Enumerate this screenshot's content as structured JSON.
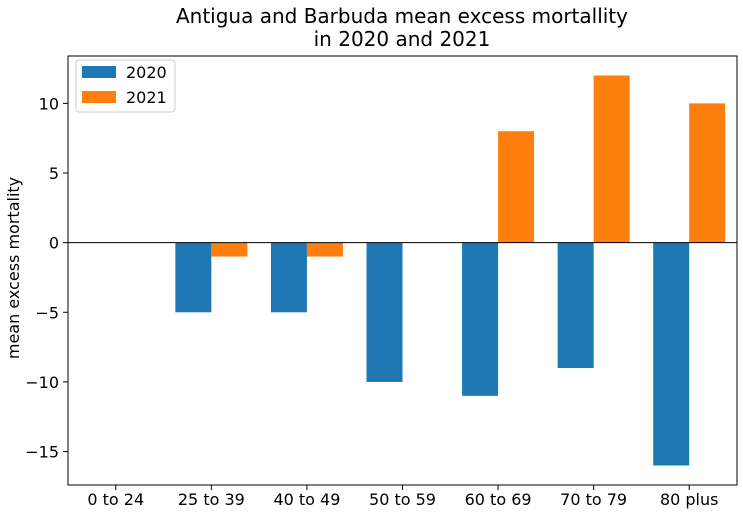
{
  "chart_data": {
    "type": "bar",
    "title": [
      "Antigua and Barbuda mean excess mortallity",
      "in 2020 and 2021"
    ],
    "xlabel": "",
    "ylabel": "mean excess mortality",
    "categories": [
      "0 to 24",
      "25 to 39",
      "40 to 49",
      "50 to 59",
      "60 to 69",
      "70 to 79",
      "80 plus"
    ],
    "series": [
      {
        "name": "2020",
        "color": "#1f77b4",
        "values": [
          0,
          -5,
          -5,
          -10,
          -11,
          -9,
          -16
        ]
      },
      {
        "name": "2021",
        "color": "#ff7f0e",
        "values": [
          0,
          -1,
          -1,
          0,
          8,
          12,
          10
        ]
      }
    ],
    "ylim": [
      -17.4,
      13.4
    ],
    "yticks": [
      -15,
      -10,
      -5,
      0,
      5,
      10
    ],
    "ytick_labels": [
      "−15",
      "−10",
      "−5",
      "0",
      "5",
      "10"
    ],
    "zero_line": true,
    "grid": false,
    "legend_position": "top-left"
  }
}
